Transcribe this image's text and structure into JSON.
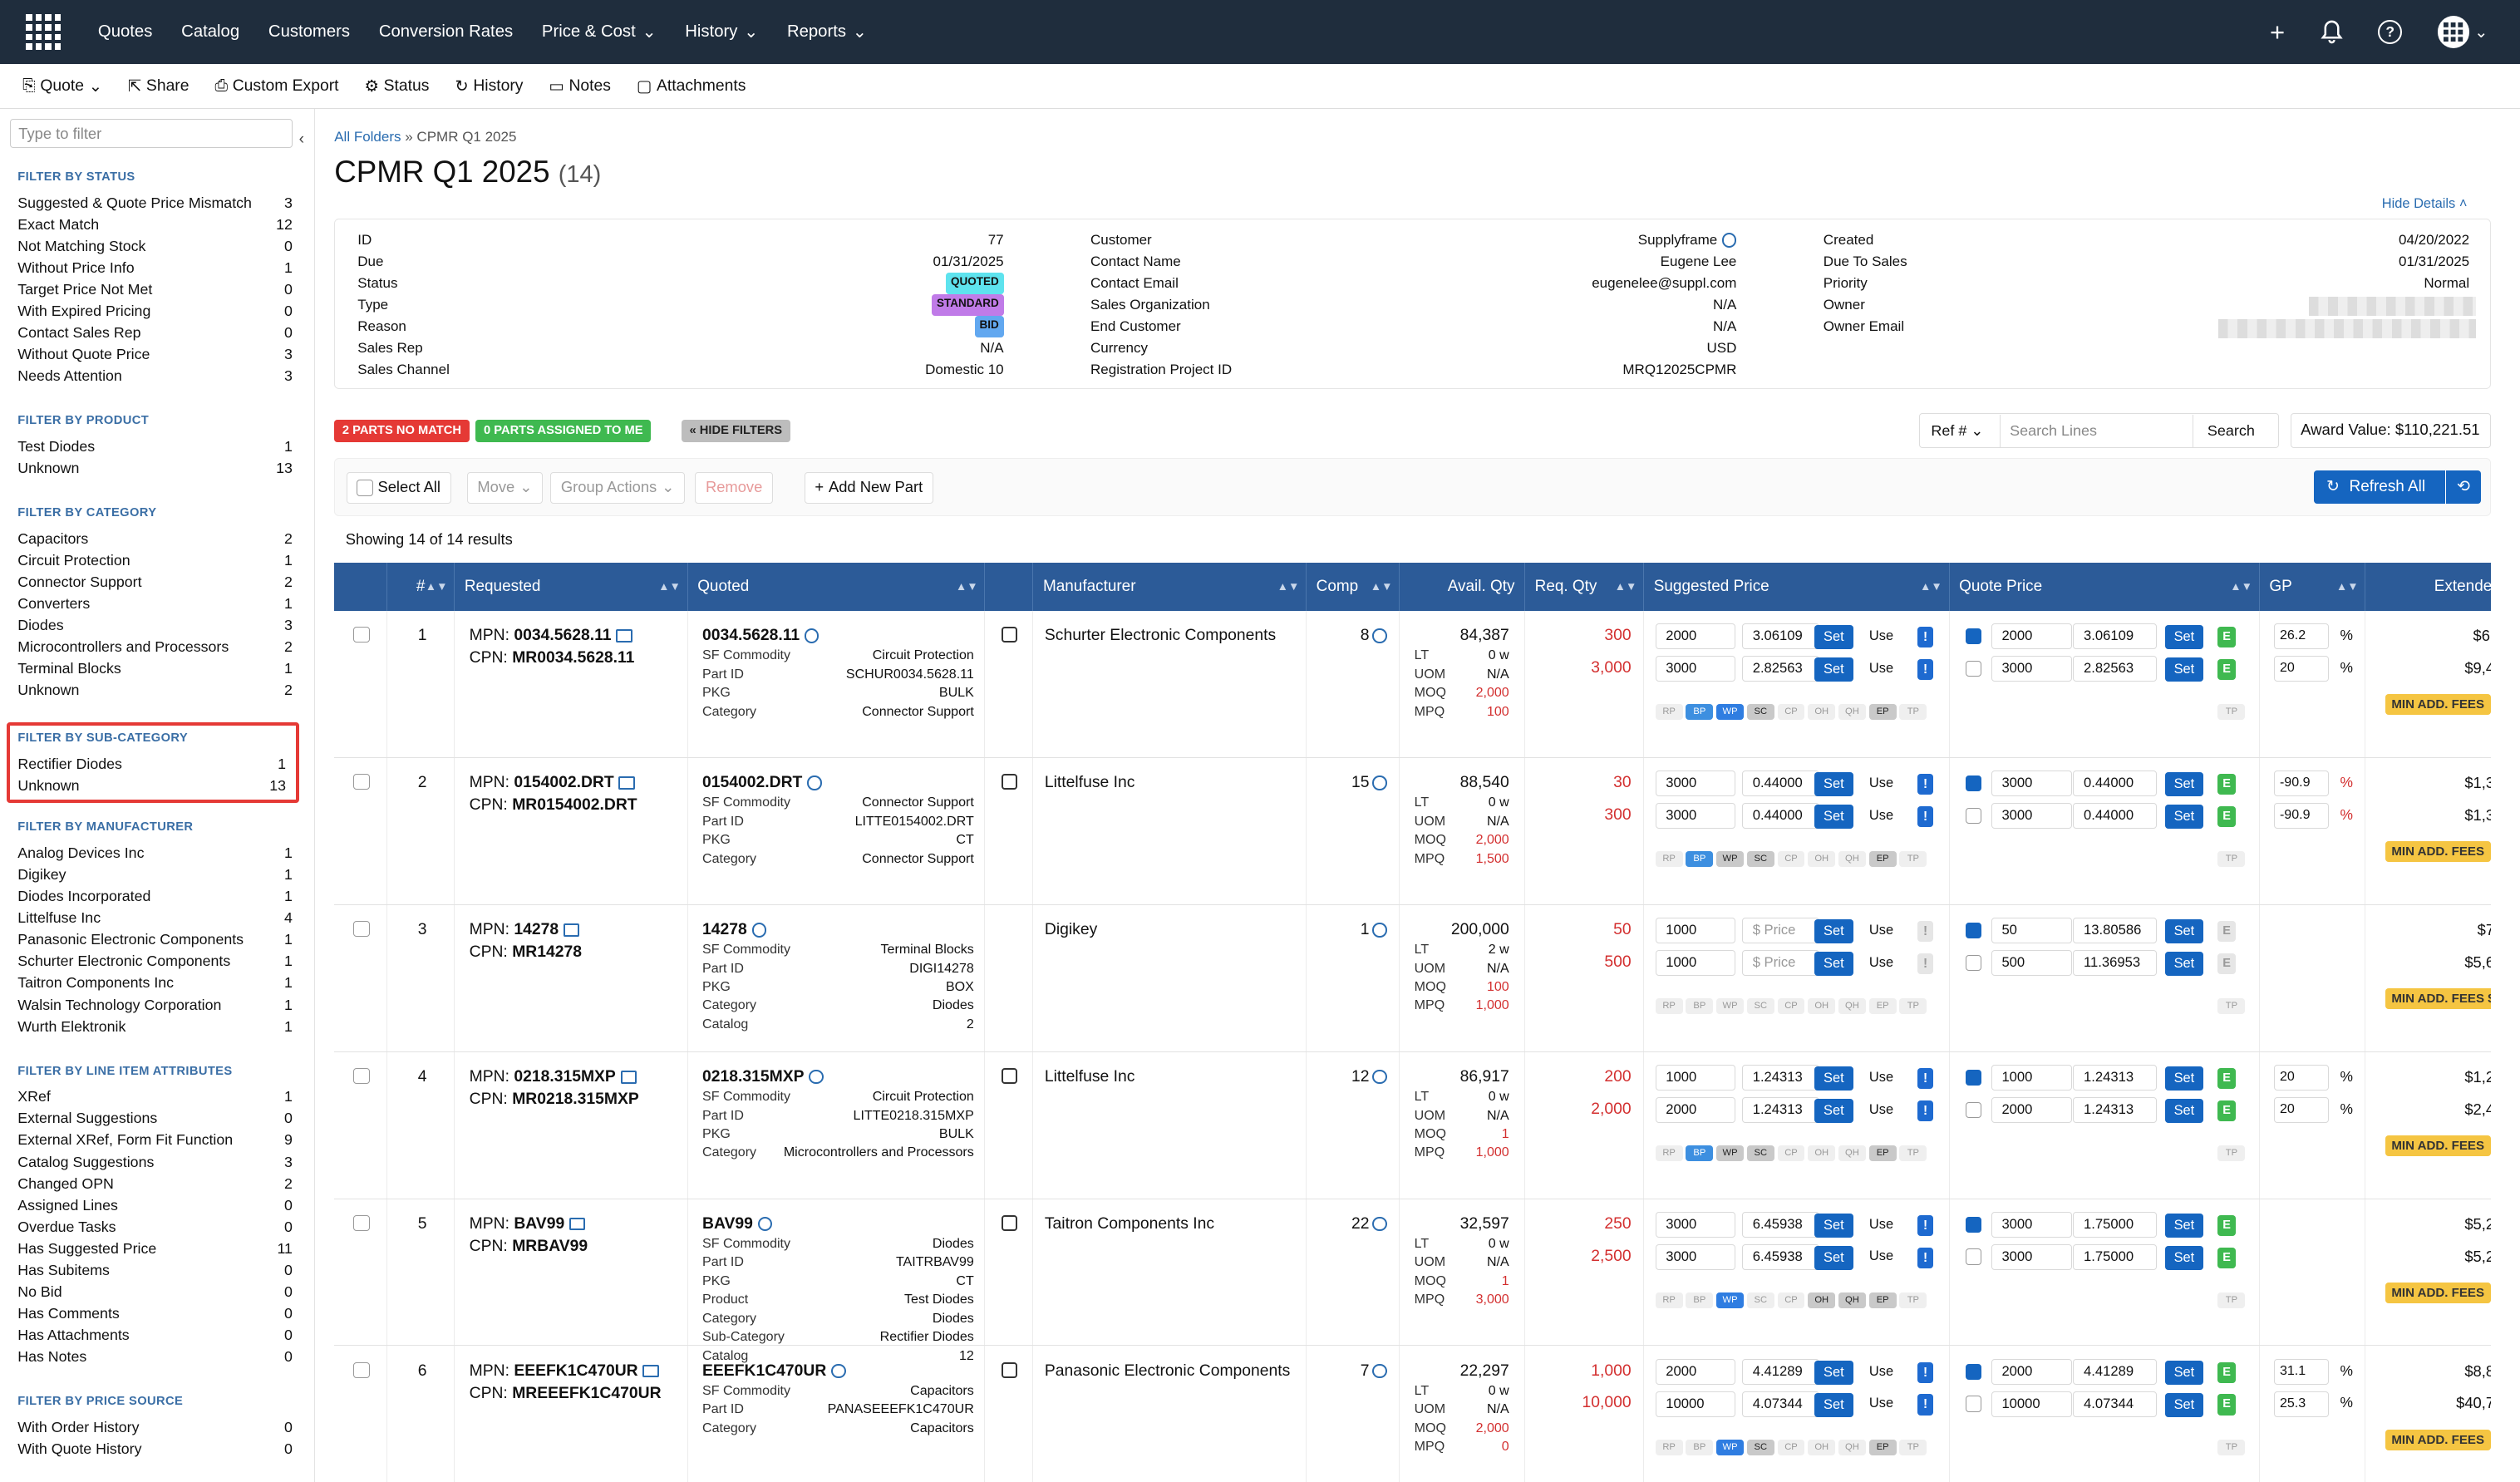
{
  "nav": {
    "items": [
      "Quotes",
      "Catalog",
      "Customers",
      "Conversion Rates",
      "Price & Cost",
      "History",
      "Reports"
    ]
  },
  "toolbar": {
    "quote": "Quote",
    "share": "Share",
    "custom_export": "Custom Export",
    "status": "Status",
    "history": "History",
    "notes": "Notes",
    "attachments": "Attachments"
  },
  "sidebar": {
    "filter_placeholder": "Type to filter",
    "sections": [
      {
        "title": "FILTER BY STATUS",
        "items": [
          [
            "Suggested & Quote Price Mismatch",
            "3"
          ],
          [
            "Exact Match",
            "12"
          ],
          [
            "Not Matching Stock",
            "0"
          ],
          [
            "Without Price Info",
            "1"
          ],
          [
            "Target Price Not Met",
            "0"
          ],
          [
            "With Expired Pricing",
            "0"
          ],
          [
            "Contact Sales Rep",
            "0"
          ],
          [
            "Without Quote Price",
            "3"
          ],
          [
            "Needs Attention",
            "3"
          ]
        ]
      },
      {
        "title": "FILTER BY PRODUCT",
        "items": [
          [
            "Test Diodes",
            "1"
          ],
          [
            "Unknown",
            "13"
          ]
        ]
      },
      {
        "title": "FILTER BY CATEGORY",
        "items": [
          [
            "Capacitors",
            "2"
          ],
          [
            "Circuit Protection",
            "1"
          ],
          [
            "Connector Support",
            "2"
          ],
          [
            "Converters",
            "1"
          ],
          [
            "Diodes",
            "3"
          ],
          [
            "Microcontrollers and Processors",
            "2"
          ],
          [
            "Terminal Blocks",
            "1"
          ],
          [
            "Unknown",
            "2"
          ]
        ]
      },
      {
        "title": "FILTER BY SUB-CATEGORY",
        "items": [
          [
            "Rectifier Diodes",
            "1"
          ],
          [
            "Unknown",
            "13"
          ]
        ]
      },
      {
        "title": "FILTER BY MANUFACTURER",
        "items": [
          [
            "Analog Devices Inc",
            "1"
          ],
          [
            "Digikey",
            "1"
          ],
          [
            "Diodes Incorporated",
            "1"
          ],
          [
            "Littelfuse Inc",
            "4"
          ],
          [
            "Panasonic Electronic Components",
            "1"
          ],
          [
            "Schurter Electronic Components",
            "1"
          ],
          [
            "Taitron Components Inc",
            "1"
          ],
          [
            "Walsin Technology Corporation",
            "1"
          ],
          [
            "Wurth Elektronik",
            "1"
          ]
        ]
      },
      {
        "title": "FILTER BY LINE ITEM ATTRIBUTES",
        "items": [
          [
            "XRef",
            "1"
          ],
          [
            "External Suggestions",
            "0"
          ],
          [
            "External XRef, Form Fit Function",
            "9"
          ],
          [
            "Catalog Suggestions",
            "3"
          ],
          [
            "Changed OPN",
            "2"
          ],
          [
            "Assigned Lines",
            "0"
          ],
          [
            "Overdue Tasks",
            "0"
          ],
          [
            "Has Suggested Price",
            "11"
          ],
          [
            "Has Subitems",
            "0"
          ],
          [
            "No Bid",
            "0"
          ],
          [
            "Has Comments",
            "0"
          ],
          [
            "Has Attachments",
            "0"
          ],
          [
            "Has Notes",
            "0"
          ]
        ]
      },
      {
        "title": "FILTER BY PRICE SOURCE",
        "items": [
          [
            "With Order History",
            "0"
          ],
          [
            "With Quote History",
            "0"
          ]
        ]
      }
    ]
  },
  "breadcrumb": {
    "root": "All Folders",
    "sep": " » ",
    "current": "CPMR Q1 2025"
  },
  "page": {
    "title": "CPMR Q1 2025",
    "count": "(14)",
    "hide_details": "Hide Details"
  },
  "details": {
    "col1": [
      [
        "ID",
        "77"
      ],
      [
        "Due",
        "01/31/2025"
      ],
      [
        "Status",
        "QUOTED"
      ],
      [
        "Type",
        "STANDARD"
      ],
      [
        "Reason",
        "BID"
      ],
      [
        "Sales Rep",
        "N/A"
      ],
      [
        "Sales Channel",
        "Domestic 10"
      ]
    ],
    "col2": [
      [
        "Customer",
        "Supplyframe"
      ],
      [
        "Contact Name",
        "Eugene Lee"
      ],
      [
        "Contact Email",
        "eugenelee@suppl.com"
      ],
      [
        "Sales Organization",
        "N/A"
      ],
      [
        "End Customer",
        "N/A"
      ],
      [
        "Currency",
        "USD"
      ],
      [
        "Registration Project ID",
        "MRQ12025CPMR"
      ]
    ],
    "col3": [
      [
        "Created",
        "04/20/2022"
      ],
      [
        "Due To Sales",
        "01/31/2025"
      ],
      [
        "Priority",
        "Normal"
      ],
      [
        "Owner",
        ""
      ],
      [
        "Owner Email",
        ""
      ]
    ],
    "badge_colors": {
      "QUOTED": "#5ee3ee",
      "STANDARD": "#c07be8",
      "BID": "#62a8f0"
    }
  },
  "pills": {
    "no_match": "2 PARTS NO MATCH",
    "assigned": "0 PARTS ASSIGNED TO ME",
    "hide_filters": "« HIDE FILTERS"
  },
  "search": {
    "ref": "Ref #",
    "placeholder": "Search Lines",
    "button": "Search"
  },
  "award": "Award Value: $110,221.51",
  "actions": {
    "select_all": "Select All",
    "move": "Move",
    "group_actions": "Group Actions",
    "remove": "Remove",
    "add_new_part": "Add New Part",
    "refresh_all": "Refresh All"
  },
  "showing": "Showing 14 of 14 results",
  "columns": [
    "#",
    "Requested",
    "Quoted",
    "Manufacturer",
    "Comp",
    "Avail. Qty",
    "Req. Qty",
    "Suggested Price",
    "Quote Price",
    "GP",
    "Extended"
  ],
  "tag_labels": [
    "RP",
    "BP",
    "WP",
    "SC",
    "CP",
    "OH",
    "QH",
    "EP",
    "TP"
  ],
  "lines": [
    {
      "n": "1",
      "mpn": "0034.5628.11",
      "cpn": "MR0034.5628.11",
      "quoted": "0034.5628.11",
      "attrs": [
        [
          "SF Commodity",
          "Circuit Protection"
        ],
        [
          "Part ID",
          "SCHUR0034.5628.11"
        ],
        [
          "PKG",
          "BULK"
        ],
        [
          "Category",
          "Connector Support"
        ]
      ],
      "mfr": "Schurter Electronic Components",
      "comp": "8",
      "avail": "84,387",
      "lt": "0 w",
      "uom": "N/A",
      "moq": "2,000",
      "mpq": "100",
      "req": [
        "300",
        "3,000"
      ],
      "sp": [
        [
          "2000",
          "3.06109"
        ],
        [
          "3000",
          "2.82563"
        ]
      ],
      "qp": [
        [
          "2000",
          "3.06109"
        ],
        [
          "3000",
          "2.82563"
        ]
      ],
      "gp": [
        "26.2",
        "20"
      ],
      "ext": [
        "$6,",
        "$9,4"
      ],
      "fee": "MIN ADD. FEES"
    },
    {
      "n": "2",
      "mpn": "0154002.DRT",
      "cpn": "MR0154002.DRT",
      "quoted": "0154002.DRT",
      "attrs": [
        [
          "SF Commodity",
          "Connector Support"
        ],
        [
          "Part ID",
          "LITTE0154002.DRT"
        ],
        [
          "PKG",
          "CT"
        ],
        [
          "Category",
          "Connector Support"
        ]
      ],
      "mfr": "Littelfuse Inc",
      "comp": "15",
      "avail": "88,540",
      "lt": "0 w",
      "uom": "N/A",
      "moq": "2,000",
      "mpq": "1,500",
      "req": [
        "30",
        "300"
      ],
      "sp": [
        [
          "3000",
          "0.44000"
        ],
        [
          "3000",
          "0.44000"
        ]
      ],
      "qp": [
        [
          "3000",
          "0.44000"
        ],
        [
          "3000",
          "0.44000"
        ]
      ],
      "gp": [
        "-90.9",
        "-90.9"
      ],
      "ext": [
        "$1,3",
        "$1,3"
      ],
      "fee": "MIN ADD. FEES"
    },
    {
      "n": "3",
      "mpn": "14278",
      "cpn": "MR14278",
      "quoted": "14278",
      "attrs": [
        [
          "SF Commodity",
          "Terminal Blocks"
        ],
        [
          "Part ID",
          "DIGI14278"
        ],
        [
          "PKG",
          "BOX"
        ],
        [
          "Category",
          "Diodes"
        ],
        [
          "Catalog",
          "2"
        ]
      ],
      "mfr": "Digikey",
      "comp": "1",
      "avail": "200,000",
      "lt": "2 w",
      "uom": "N/A",
      "moq": "100",
      "mpq": "1,000",
      "req": [
        "50",
        "500"
      ],
      "sp": [
        [
          "1000",
          "$ Price"
        ],
        [
          "1000",
          "$ Price"
        ]
      ],
      "qp": [
        [
          "50",
          "13.80586"
        ],
        [
          "500",
          "11.36953"
        ]
      ],
      "gp": [
        "",
        ""
      ],
      "ext": [
        "$7",
        "$5,6"
      ],
      "fee": "MIN ADD. FEES $"
    },
    {
      "n": "4",
      "mpn": "0218.315MXP",
      "cpn": "MR0218.315MXP",
      "quoted": "0218.315MXP",
      "attrs": [
        [
          "SF Commodity",
          "Circuit Protection"
        ],
        [
          "Part ID",
          "LITTE0218.315MXP"
        ],
        [
          "PKG",
          "BULK"
        ],
        [
          "Category",
          "Microcontrollers and Processors"
        ]
      ],
      "mfr": "Littelfuse Inc",
      "comp": "12",
      "avail": "86,917",
      "lt": "0 w",
      "uom": "N/A",
      "moq": "1",
      "mpq": "1,000",
      "req": [
        "200",
        "2,000"
      ],
      "sp": [
        [
          "1000",
          "1.24313"
        ],
        [
          "2000",
          "1.24313"
        ]
      ],
      "qp": [
        [
          "1000",
          "1.24313"
        ],
        [
          "2000",
          "1.24313"
        ]
      ],
      "gp": [
        "20",
        "20"
      ],
      "ext": [
        "$1,2",
        "$2,4"
      ],
      "fee": "MIN ADD. FEES"
    },
    {
      "n": "5",
      "mpn": "BAV99",
      "cpn": "MRBAV99",
      "quoted": "BAV99",
      "attrs": [
        [
          "SF Commodity",
          "Diodes"
        ],
        [
          "Part ID",
          "TAITRBAV99"
        ],
        [
          "PKG",
          "CT"
        ],
        [
          "Product",
          "Test Diodes"
        ],
        [
          "Category",
          "Diodes"
        ],
        [
          "Sub-Category",
          "Rectifier Diodes"
        ],
        [
          "Catalog",
          "12"
        ]
      ],
      "mfr": "Taitron Components Inc",
      "comp": "22",
      "avail": "32,597",
      "lt": "0 w",
      "uom": "N/A",
      "moq": "1",
      "mpq": "3,000",
      "req": [
        "250",
        "2,500"
      ],
      "sp": [
        [
          "3000",
          "6.45938"
        ],
        [
          "3000",
          "6.45938"
        ]
      ],
      "qp": [
        [
          "3000",
          "1.75000"
        ],
        [
          "3000",
          "1.75000"
        ]
      ],
      "gp": [
        "",
        ""
      ],
      "ext": [
        "$5,2",
        "$5,2"
      ],
      "fee": "MIN ADD. FEES"
    },
    {
      "n": "6",
      "mpn": "EEEFK1C470UR",
      "cpn": "MREEEFK1C470UR",
      "quoted": "EEEFK1C470UR",
      "attrs": [
        [
          "SF Commodity",
          "Capacitors"
        ],
        [
          "Part ID",
          "PANASEEEFK1C470UR"
        ],
        [
          "Category",
          "Capacitors"
        ]
      ],
      "mfr": "Panasonic Electronic Components",
      "comp": "7",
      "avail": "22,297",
      "lt": "0 w",
      "uom": "N/A",
      "moq": "2,000",
      "mpq": "0",
      "req": [
        "1,000",
        "10,000"
      ],
      "sp": [
        [
          "2000",
          "4.41289"
        ],
        [
          "10000",
          "4.07344"
        ]
      ],
      "qp": [
        [
          "2000",
          "4.41289"
        ],
        [
          "10000",
          "4.07344"
        ]
      ],
      "gp": [
        "31.1",
        "25.3"
      ],
      "ext": [
        "$8,8",
        "$40,7"
      ],
      "fee": "MIN ADD. FEES"
    }
  ],
  "labels": {
    "mpn": "MPN: ",
    "cpn": "CPN: ",
    "lt": "LT",
    "uom": "UOM",
    "moq": "MOQ",
    "mpq": "MPQ",
    "set": "Set",
    "use": "Use",
    "pct": "%",
    "e": "E"
  }
}
